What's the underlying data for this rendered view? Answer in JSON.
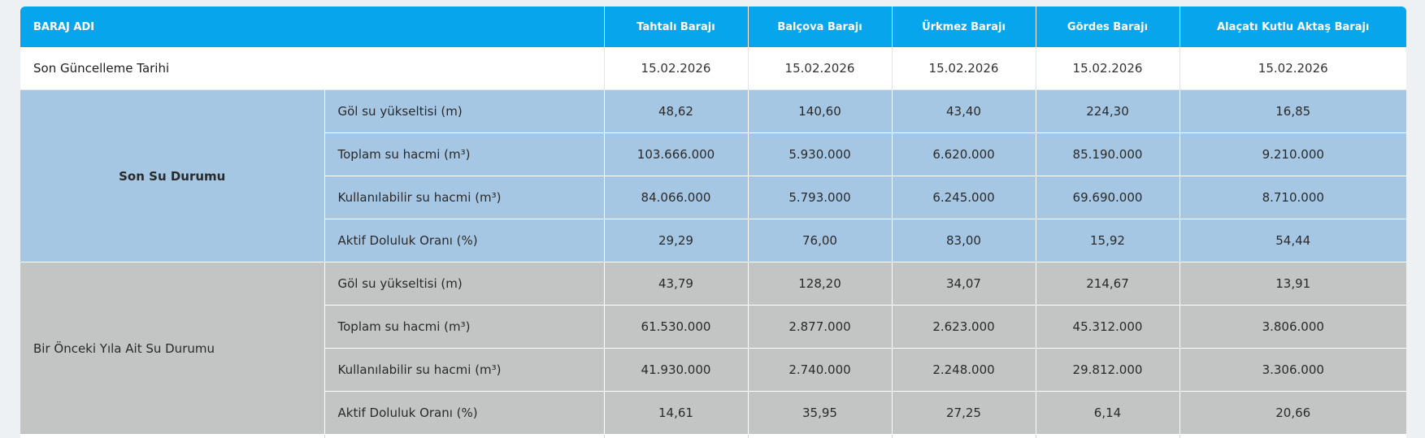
{
  "table": {
    "name_header": "BARAJ ADI",
    "dams": [
      "Tahtalı Barajı",
      "Balçova Barajı",
      "Ürkmez Barajı",
      "Gördes Barajı",
      "Alaçatı Kutlu Aktaş Barajı"
    ],
    "update_row": {
      "label": "Son Güncelleme Tarihi",
      "values": [
        "15.02.2026",
        "15.02.2026",
        "15.02.2026",
        "15.02.2026",
        "15.02.2026"
      ]
    },
    "current": {
      "group_label": "Son Su Durumu",
      "rows": [
        {
          "metric": "Göl su yükseltisi (m)",
          "values": [
            "48,62",
            "140,60",
            "43,40",
            "224,30",
            "16,85"
          ]
        },
        {
          "metric": "Toplam su hacmi (m³)",
          "values": [
            "103.666.000",
            "5.930.000",
            "6.620.000",
            "85.190.000",
            "9.210.000"
          ]
        },
        {
          "metric": "Kullanılabilir su hacmi (m³)",
          "values": [
            "84.066.000",
            "5.793.000",
            "6.245.000",
            "69.690.000",
            "8.710.000"
          ]
        },
        {
          "metric": "Aktif Doluluk Oranı (%)",
          "values": [
            "29,29",
            "76,00",
            "83,00",
            "15,92",
            "54,44"
          ]
        }
      ]
    },
    "previous": {
      "group_label": "Bir Önceki Yıla Ait Su Durumu",
      "rows": [
        {
          "metric": "Göl su yükseltisi (m)",
          "values": [
            "43,79",
            "128,20",
            "34,07",
            "214,67",
            "13,91"
          ]
        },
        {
          "metric": "Toplam su hacmi (m³)",
          "values": [
            "61.530.000",
            "2.877.000",
            "2.623.000",
            "45.312.000",
            "3.806.000"
          ]
        },
        {
          "metric": "Kullanılabilir su hacmi (m³)",
          "values": [
            "41.930.000",
            "2.740.000",
            "2.248.000",
            "29.812.000",
            "3.306.000"
          ]
        },
        {
          "metric": "Aktif Doluluk Oranı (%)",
          "values": [
            "14,61",
            "35,95",
            "27,25",
            "6,14",
            "20,66"
          ]
        }
      ]
    }
  },
  "colors": {
    "header_bg": "#07a5eb",
    "current_bg": "#a6c7e3",
    "previous_bg": "#c3c4c4"
  }
}
